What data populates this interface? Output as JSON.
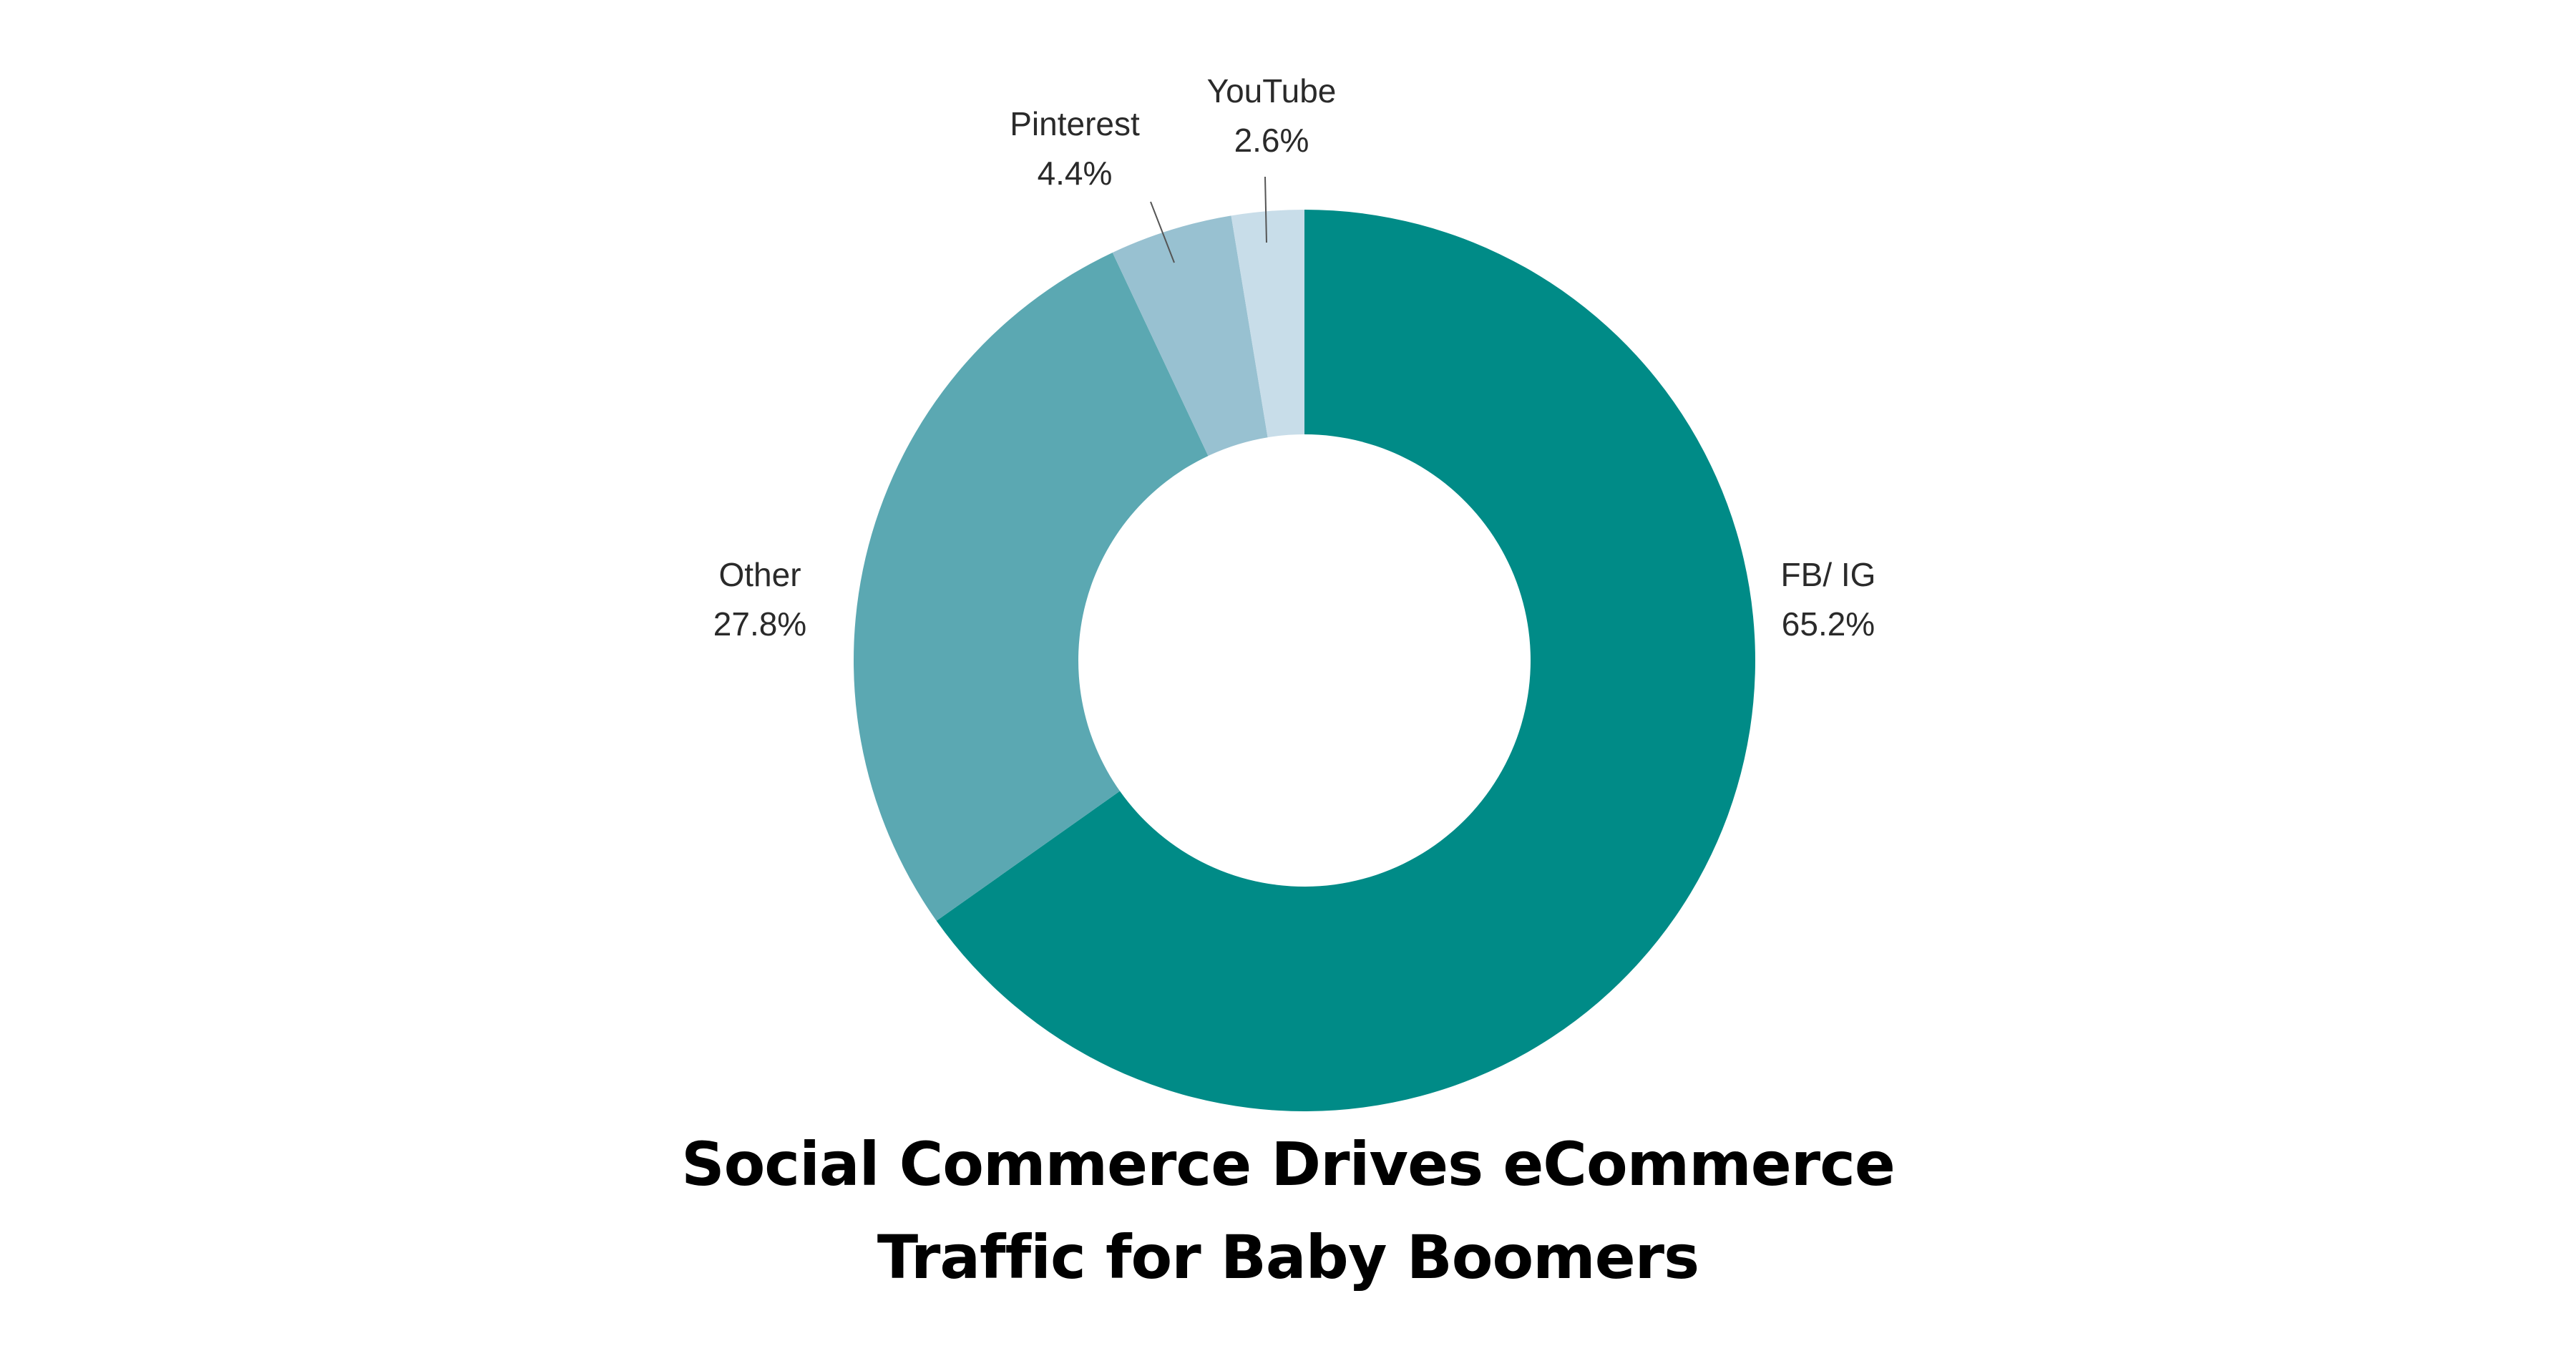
{
  "chart_data": {
    "type": "pie",
    "variant": "donut",
    "title_lines": [
      "Social Commerce Drives eCommerce",
      "Traffic for Baby Boomers"
    ],
    "slices": [
      {
        "label": "FB/ IG",
        "value": 65.2,
        "value_label": "65.2%",
        "color": "#008b87"
      },
      {
        "label": "Other",
        "value": 27.8,
        "value_label": "27.8%",
        "color": "#5ba8b2"
      },
      {
        "label": "Pinterest",
        "value": 4.4,
        "value_label": "4.4%",
        "color": "#98c1d1"
      },
      {
        "label": "YouTube",
        "value": 2.6,
        "value_label": "2.6%",
        "color": "#c8dde9"
      }
    ],
    "start_angle": "top, clockwise",
    "legend": "none"
  }
}
